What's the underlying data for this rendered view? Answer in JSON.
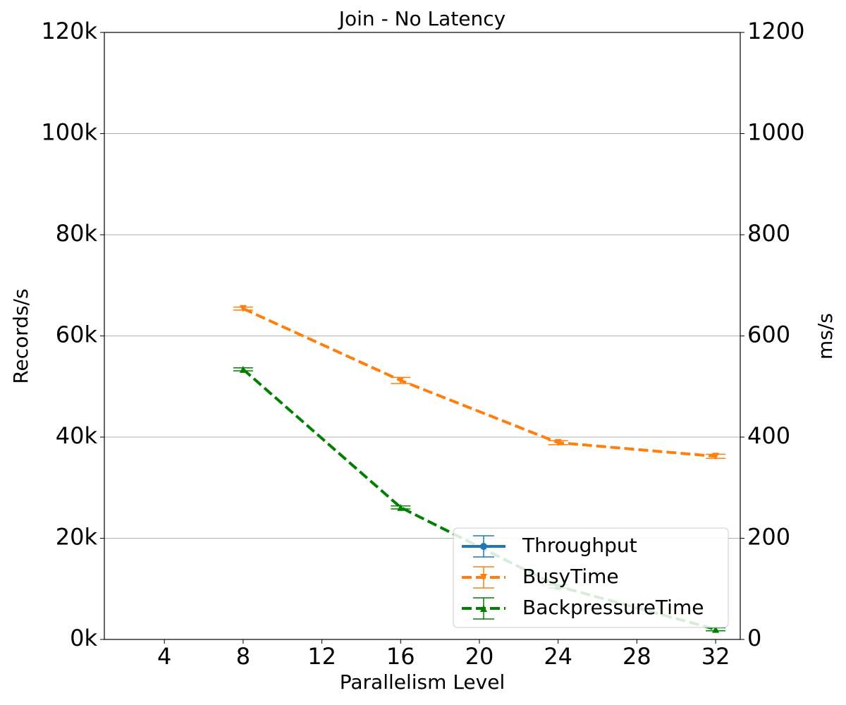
{
  "chart_data": {
    "type": "line",
    "title": "Join - No Latency",
    "xlabel": "Parallelism Level",
    "ylabel": "Records/s",
    "y2label": "ms/s",
    "x": [
      8,
      16,
      24,
      32
    ],
    "xlim": [
      0.95,
      33.25
    ],
    "xticks": [
      4,
      8,
      12,
      16,
      20,
      24,
      28,
      32
    ],
    "ylim": [
      0,
      120000
    ],
    "yticks": [
      {
        "value": 0,
        "label": "0k"
      },
      {
        "value": 20000,
        "label": "20k"
      },
      {
        "value": 40000,
        "label": "40k"
      },
      {
        "value": 60000,
        "label": "60k"
      },
      {
        "value": 80000,
        "label": "80k"
      },
      {
        "value": 100000,
        "label": "100k"
      },
      {
        "value": 120000,
        "label": "120k"
      }
    ],
    "y2lim": [
      0,
      1200
    ],
    "y2ticks": [
      0,
      200,
      400,
      600,
      800,
      1000,
      1200
    ],
    "grid": true,
    "legend": "lower right",
    "series": [
      {
        "name": "Throughput",
        "color": "#1f77b4",
        "values": [
          null,
          null,
          null,
          null
        ],
        "errors": [
          null,
          null,
          null,
          null
        ],
        "marker": "circle",
        "dash": false
      },
      {
        "name": "BusyTime",
        "color": "#ff7f0e",
        "axis": "y2",
        "values": [
          654,
          512,
          389,
          362
        ],
        "errors": [
          3,
          6,
          4,
          4
        ],
        "marker": "triangle-down",
        "dash": true
      },
      {
        "name": "BackpressureTime",
        "color": "#008000",
        "axis": "y2",
        "values": [
          534,
          261,
          105,
          20
        ],
        "errors": [
          3,
          3,
          3,
          3
        ],
        "marker": "triangle-up",
        "dash": true
      }
    ]
  }
}
